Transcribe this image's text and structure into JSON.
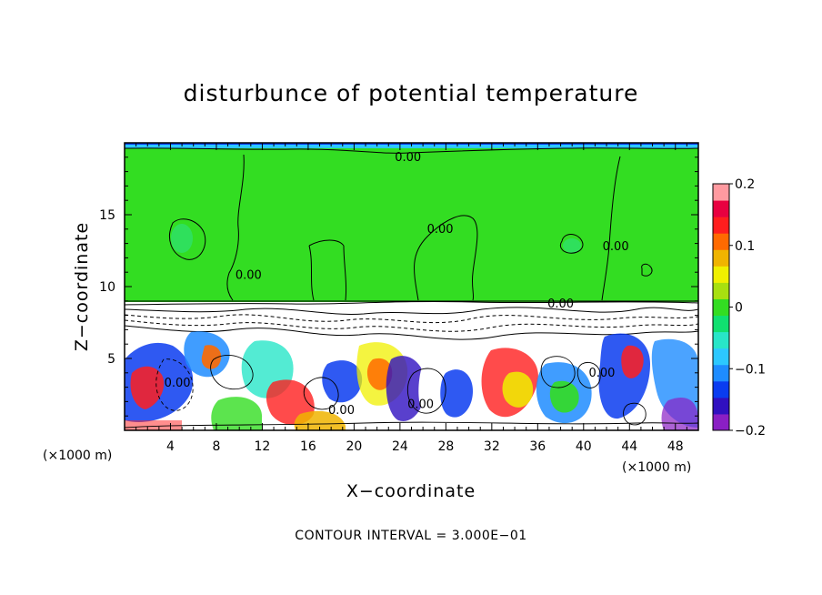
{
  "chart_data": {
    "type": "heatmap",
    "title": "disturbunce of potential temperature",
    "xlabel": "X−coordinate",
    "ylabel": "Z−coordinate",
    "x_unit_left": "(×1000 m)",
    "x_unit_right": "(×1000 m)",
    "xlim": [
      0,
      50
    ],
    "ylim": [
      0,
      20
    ],
    "x_ticks": [
      4,
      8,
      12,
      16,
      20,
      24,
      28,
      32,
      36,
      40,
      44,
      48
    ],
    "x_tick_labels": [
      "4",
      "8",
      "12",
      "16",
      "20",
      "24",
      "28",
      "32",
      "36",
      "40",
      "44",
      "48"
    ],
    "y_ticks": [
      5,
      10,
      15
    ],
    "y_tick_labels": [
      "5",
      "10",
      "15"
    ],
    "colorbar": {
      "range": [
        -0.2,
        0.2
      ],
      "ticks": [
        0.2,
        0.1,
        0,
        -0.1,
        -0.2
      ],
      "tick_labels": [
        "0.2",
        "0.1",
        "0",
        "−0.1",
        "−0.2"
      ],
      "colors": [
        "#8a1fc4",
        "#3010c0",
        "#0a3cf0",
        "#1e8cff",
        "#2cc8ff",
        "#28e6c8",
        "#10e070",
        "#33dd22",
        "#a8e010",
        "#f0f000",
        "#f0b400",
        "#ff6a00",
        "#ff1e1e",
        "#e80040",
        "#ff9aa0"
      ]
    },
    "contour_labels": [
      {
        "text": "0.00",
        "x": 24.7,
        "y": 19.0
      },
      {
        "text": "0.00",
        "x": 27.5,
        "y": 14.0
      },
      {
        "text": "0.00",
        "x": 42.8,
        "y": 12.8
      },
      {
        "text": "0.00",
        "x": 10.8,
        "y": 10.8
      },
      {
        "text": "0.00",
        "x": 38.0,
        "y": 8.8
      },
      {
        "text": "0.00",
        "x": 4.6,
        "y": 3.3
      },
      {
        "text": "0.00",
        "x": 18.9,
        "y": 1.4
      },
      {
        "text": "0.00",
        "x": 25.8,
        "y": 1.8
      },
      {
        "text": "0.00",
        "x": 41.6,
        "y": 4.0
      }
    ],
    "contour_interval_text": "CONTOUR INTERVAL = 3.000E−01"
  }
}
